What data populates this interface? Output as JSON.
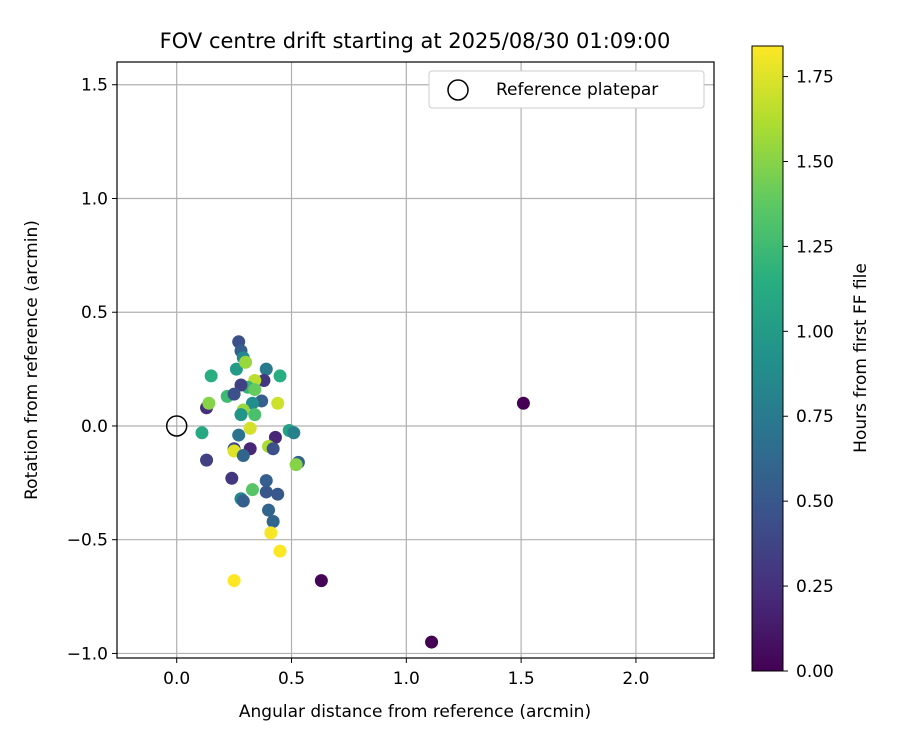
{
  "chart_data": {
    "type": "scatter",
    "title": "FOV centre drift starting at 2025/08/30 01:09:00",
    "xlabel": "Angular distance from reference (arcmin)",
    "ylabel": "Rotation from reference (arcmin)",
    "xlim": [
      -0.26,
      2.34
    ],
    "ylim": [
      -1.02,
      1.6
    ],
    "xticks": [
      0.0,
      0.5,
      1.0,
      1.5,
      2.0
    ],
    "xtick_labels": [
      "0.0",
      "0.5",
      "1.0",
      "1.5",
      "2.0"
    ],
    "yticks": [
      -1.0,
      -0.5,
      0.0,
      0.5,
      1.0,
      1.5
    ],
    "ytick_labels": [
      "−1.0",
      "−0.5",
      "0.0",
      "0.5",
      "1.0",
      "1.5"
    ],
    "grid": true,
    "legend": {
      "label": "Reference platepar",
      "location": "upper-right",
      "marker": "open-circle"
    },
    "reference_point": {
      "x": 0.0,
      "y": 0.0
    },
    "colorbar": {
      "label": "Hours from first FF file",
      "colormap": "viridis",
      "min": 0.0,
      "max": 1.84,
      "ticks": [
        0.0,
        0.25,
        0.5,
        0.75,
        1.0,
        1.25,
        1.5,
        1.75
      ],
      "tick_labels": [
        "0.00",
        "0.25",
        "0.50",
        "0.75",
        "1.00",
        "1.25",
        "1.50",
        "1.75"
      ]
    },
    "points": [
      {
        "x": 1.51,
        "y": 0.1,
        "h": 0.0
      },
      {
        "x": 1.11,
        "y": -0.95,
        "h": 0.0
      },
      {
        "x": 0.63,
        "y": -0.68,
        "h": 0.02
      },
      {
        "x": 0.13,
        "y": 0.08,
        "h": 0.25
      },
      {
        "x": 0.27,
        "y": 0.37,
        "h": 0.45
      },
      {
        "x": 0.28,
        "y": 0.33,
        "h": 0.55
      },
      {
        "x": 0.29,
        "y": 0.3,
        "h": 0.85
      },
      {
        "x": 0.26,
        "y": 0.25,
        "h": 1.0
      },
      {
        "x": 0.39,
        "y": 0.25,
        "h": 0.75
      },
      {
        "x": 0.45,
        "y": 0.22,
        "h": 1.15
      },
      {
        "x": 0.15,
        "y": 0.22,
        "h": 1.15
      },
      {
        "x": 0.38,
        "y": 0.2,
        "h": 0.3
      },
      {
        "x": 0.3,
        "y": 0.28,
        "h": 1.55
      },
      {
        "x": 0.34,
        "y": 0.2,
        "h": 1.65
      },
      {
        "x": 0.31,
        "y": 0.17,
        "h": 1.2
      },
      {
        "x": 0.28,
        "y": 0.18,
        "h": 0.35
      },
      {
        "x": 0.34,
        "y": 0.16,
        "h": 1.4
      },
      {
        "x": 0.22,
        "y": 0.13,
        "h": 1.25
      },
      {
        "x": 0.25,
        "y": 0.14,
        "h": 0.45
      },
      {
        "x": 0.37,
        "y": 0.11,
        "h": 0.55
      },
      {
        "x": 0.33,
        "y": 0.1,
        "h": 0.9
      },
      {
        "x": 0.44,
        "y": 0.1,
        "h": 1.7
      },
      {
        "x": 0.14,
        "y": 0.1,
        "h": 1.5
      },
      {
        "x": 0.29,
        "y": 0.07,
        "h": 1.55
      },
      {
        "x": 0.28,
        "y": 0.05,
        "h": 0.95
      },
      {
        "x": 0.34,
        "y": 0.05,
        "h": 1.3
      },
      {
        "x": 0.32,
        "y": -0.01,
        "h": 1.72
      },
      {
        "x": 0.11,
        "y": -0.03,
        "h": 1.1
      },
      {
        "x": 0.27,
        "y": -0.04,
        "h": 0.7
      },
      {
        "x": 0.49,
        "y": -0.02,
        "h": 1.05
      },
      {
        "x": 0.51,
        "y": -0.03,
        "h": 0.8
      },
      {
        "x": 0.43,
        "y": -0.05,
        "h": 0.2
      },
      {
        "x": 0.25,
        "y": -0.1,
        "h": 0.4
      },
      {
        "x": 0.32,
        "y": -0.1,
        "h": 0.2
      },
      {
        "x": 0.25,
        "y": -0.11,
        "h": 1.75
      },
      {
        "x": 0.4,
        "y": -0.09,
        "h": 1.6
      },
      {
        "x": 0.42,
        "y": -0.1,
        "h": 0.45
      },
      {
        "x": 0.29,
        "y": -0.13,
        "h": 0.6
      },
      {
        "x": 0.53,
        "y": -0.16,
        "h": 0.55
      },
      {
        "x": 0.52,
        "y": -0.17,
        "h": 1.5
      },
      {
        "x": 0.13,
        "y": -0.15,
        "h": 0.35
      },
      {
        "x": 0.24,
        "y": -0.23,
        "h": 0.3
      },
      {
        "x": 0.39,
        "y": -0.24,
        "h": 0.55
      },
      {
        "x": 0.33,
        "y": -0.28,
        "h": 1.35
      },
      {
        "x": 0.39,
        "y": -0.29,
        "h": 0.5
      },
      {
        "x": 0.44,
        "y": -0.3,
        "h": 0.5
      },
      {
        "x": 0.28,
        "y": -0.32,
        "h": 0.85
      },
      {
        "x": 0.29,
        "y": -0.33,
        "h": 0.55
      },
      {
        "x": 0.4,
        "y": -0.37,
        "h": 0.6
      },
      {
        "x": 0.42,
        "y": -0.42,
        "h": 0.6
      },
      {
        "x": 0.41,
        "y": -0.47,
        "h": 1.82
      },
      {
        "x": 0.45,
        "y": -0.55,
        "h": 1.84
      },
      {
        "x": 0.25,
        "y": -0.68,
        "h": 1.84
      }
    ]
  }
}
